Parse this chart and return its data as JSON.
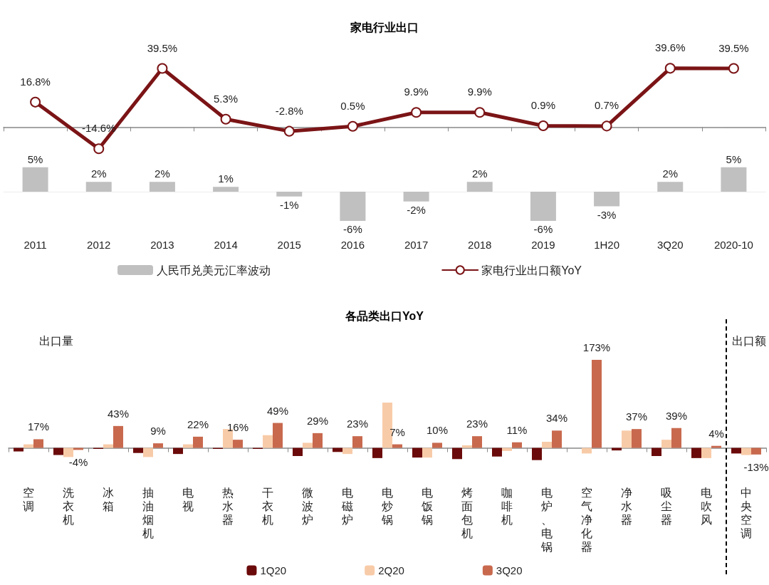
{
  "chart_data": [
    {
      "type": "line",
      "title": "家电行业出口",
      "categories": [
        "2011",
        "2012",
        "2013",
        "2014",
        "2015",
        "2016",
        "2017",
        "2018",
        "2019",
        "1H20",
        "3Q20",
        "2020-10"
      ],
      "legend": "bottom right",
      "tick_labels": false,
      "marker": "circle",
      "line_style": "solid",
      "series": [
        {
          "name": "家电行业出口额YoY",
          "color": "#7b1416",
          "values": [
            16.8,
            -14.6,
            39.5,
            5.3,
            -2.8,
            0.5,
            9.9,
            9.9,
            0.9,
            0.7,
            39.6,
            39.5
          ],
          "value_labels": [
            "16.8%",
            "-14.6%",
            "39.5%",
            "5.3%",
            "-2.8%",
            "0.5%",
            "9.9%",
            "9.9%",
            "0.9%",
            "0.7%",
            "39.6%",
            "39.5%"
          ]
        }
      ]
    },
    {
      "type": "bar",
      "categories": [
        "2011",
        "2012",
        "2013",
        "2014",
        "2015",
        "2016",
        "2017",
        "2018",
        "2019",
        "1H20",
        "3Q20",
        "2020-10"
      ],
      "legend": "bottom left",
      "tick_labels": "x",
      "series": [
        {
          "name": "人民币兑美元汇率波动",
          "color": "#c0c0c0",
          "values": [
            5,
            2,
            2,
            1,
            -1,
            -6,
            -2,
            2,
            -6,
            -3,
            2,
            5
          ],
          "value_labels": [
            "5%",
            "2%",
            "2%",
            "1%",
            "-1%",
            "-6%",
            "-2%",
            "2%",
            "-6%",
            "-3%",
            "2%",
            "5%"
          ]
        }
      ]
    },
    {
      "type": "bar",
      "title": "各品类出口YoY",
      "annotations": [
        "出口量",
        "出口额"
      ],
      "categories": [
        "空调",
        "洗衣机",
        "冰箱",
        "抽油烟机",
        "电视",
        "热水器",
        "干衣机",
        "微波炉",
        "电磁炉",
        "电炒锅",
        "电饭锅",
        "烤面包机",
        "咖啡机",
        "电炉、电锅",
        "空气净化器",
        "净水器",
        "吸尘器",
        "电吹风",
        "中央空调"
      ],
      "legend": "bottom",
      "tick_labels": "x",
      "series": [
        {
          "name": "1Q20",
          "color": "#6b0a0a",
          "values": [
            -7,
            -14,
            -2,
            -10,
            -12,
            -2,
            -2,
            -16,
            -8,
            -20,
            -19,
            -22,
            -17,
            -24,
            null,
            -5,
            -16,
            -20,
            -11
          ]
        },
        {
          "name": "2Q20",
          "color": "#f8cba8",
          "values": [
            7,
            -18,
            7,
            -18,
            7,
            37,
            25,
            10,
            -12,
            89,
            -19,
            5,
            -6,
            12,
            -11,
            34,
            16,
            -20,
            -14
          ]
        },
        {
          "name": "3Q20",
          "color": "#c8694e",
          "values": [
            17,
            -4,
            43,
            9,
            22,
            16,
            49,
            29,
            23,
            7,
            10,
            23,
            11,
            34,
            173,
            37,
            39,
            4,
            -13
          ],
          "value_labels": [
            "17%",
            "-4%",
            "43%",
            "9%",
            "22%",
            "16%",
            "49%",
            "29%",
            "23%",
            "7%",
            "10%",
            "23%",
            "11%",
            "34%",
            "173%",
            "37%",
            "39%",
            "4%",
            "-13%"
          ]
        }
      ]
    }
  ]
}
